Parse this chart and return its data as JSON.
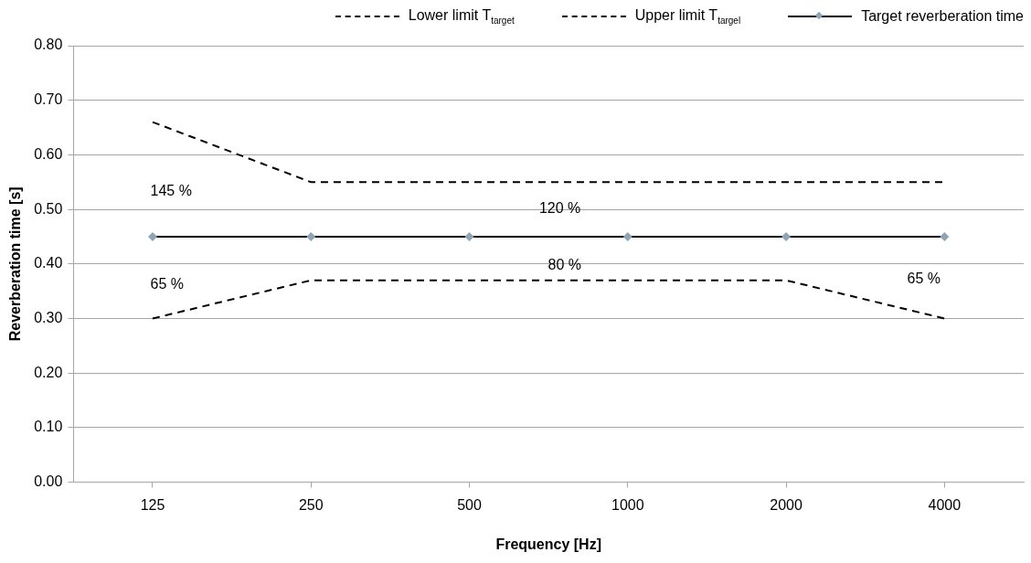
{
  "chart_data": {
    "type": "line",
    "categories": [
      "125",
      "250",
      "500",
      "1000",
      "2000",
      "4000"
    ],
    "xlabel": "Frequency [Hz]",
    "ylabel": "Reverberation time [s]",
    "ylim": [
      0,
      0.8
    ],
    "yticks": [
      {
        "value": 0,
        "label": "0.00"
      },
      {
        "value": 0.1,
        "label": "0.10"
      },
      {
        "value": 0.2,
        "label": "0.20"
      },
      {
        "value": 0.3,
        "label": "0.30"
      },
      {
        "value": 0.4,
        "label": "0.40"
      },
      {
        "value": 0.5,
        "label": "0.50"
      },
      {
        "value": 0.6,
        "label": "0.60"
      },
      {
        "value": 0.7,
        "label": "0.70"
      },
      {
        "value": 0.8,
        "label": "0.80"
      }
    ],
    "grid": "y",
    "legend": "top",
    "series": [
      {
        "name": "Lower limit T$_{target}$",
        "color": "#000000",
        "line_style": "dashed",
        "marker": "none",
        "values": [
          0.3,
          0.37,
          0.37,
          0.37,
          0.37,
          0.3
        ]
      },
      {
        "name": "Upper limit T$_{targel}$",
        "color": "#000000",
        "line_style": "dashed",
        "marker": "none",
        "values": [
          0.66,
          0.55,
          0.55,
          0.55,
          0.55,
          0.55
        ]
      },
      {
        "name": "Target reverberation time",
        "color": "#000000",
        "line_style": "solid",
        "marker": "diamond",
        "values": [
          0.45,
          0.45,
          0.45,
          0.45,
          0.45,
          0.45
        ]
      }
    ],
    "annotations": [
      "145 %",
      "120 %",
      "80 %",
      "65 %",
      "65 %"
    ]
  }
}
